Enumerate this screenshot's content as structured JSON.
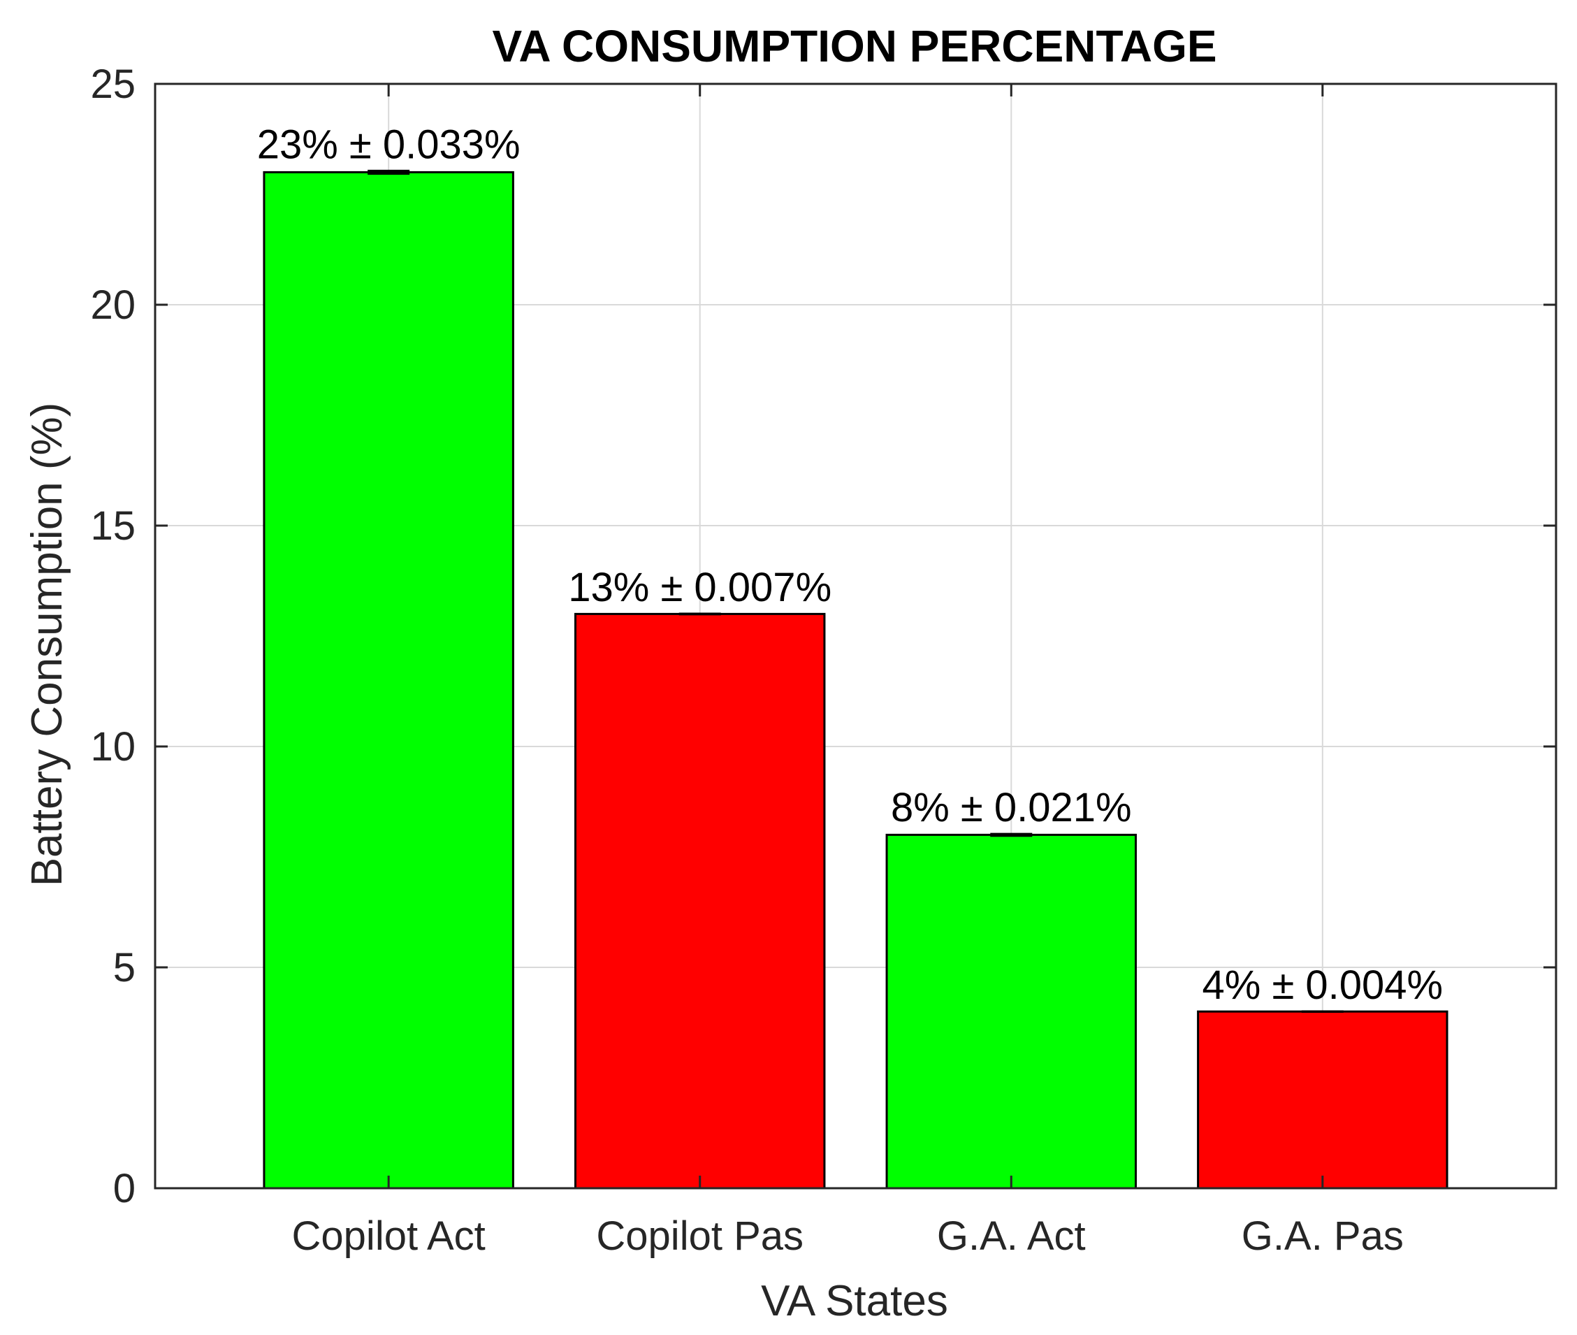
{
  "chart_data": {
    "type": "bar",
    "title": "VA CONSUMPTION PERCENTAGE",
    "xlabel": "VA States",
    "ylabel": "Battery Consumption (%)",
    "ylim": [
      0,
      25
    ],
    "yticks": [
      0,
      5,
      10,
      15,
      20,
      25
    ],
    "xlim": [
      0.25,
      4.75
    ],
    "grid": true,
    "categories": [
      "Copilot Act",
      "Copilot Pas",
      "G.A. Act",
      "G.A. Pas"
    ],
    "values": [
      23,
      13,
      8,
      4
    ],
    "errors": [
      0.033,
      0.007,
      0.021,
      0.004
    ],
    "data_labels": [
      "23% ± 0.033%",
      "13% ± 0.007%",
      "8% ± 0.021%",
      "4% ± 0.004%"
    ],
    "bar_colors": [
      "#00ff00",
      "#ff0000",
      "#00ff00",
      "#ff0000"
    ]
  },
  "colors": {
    "axis": "#262626",
    "grid": "#d9d9d9",
    "text": "#000000",
    "tick_text": "#262626"
  }
}
